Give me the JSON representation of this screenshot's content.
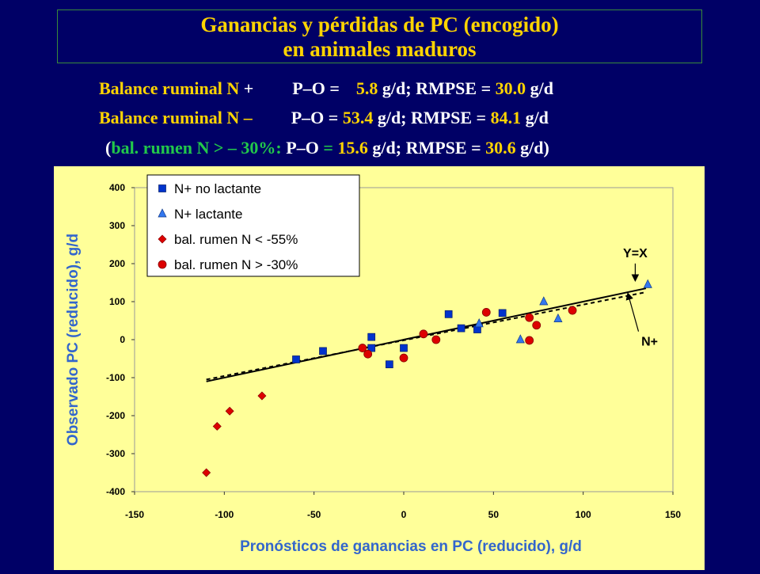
{
  "title": {
    "line1": "Ganancias y pérdidas de PC (encogido)",
    "line2": "en animales maduros"
  },
  "stats": {
    "row1": {
      "label": "Balance ruminal N",
      "sign": "+",
      "po_prefix": "P–O =",
      "po_value": "5.8",
      "po_unit": "g/d;",
      "rmpse_prefix": "RMPSE =",
      "rmpse_value": "30.0",
      "rmpse_unit": "g/d"
    },
    "row2": {
      "label": "Balance ruminal N",
      "sign": "–",
      "po_prefix": "P–O =",
      "po_value": "53.4",
      "po_unit": "g/d;",
      "rmpse_prefix": "RMPSE =",
      "rmpse_value": "84.1",
      "rmpse_unit": "g/d"
    },
    "row3": {
      "open": "(",
      "label": "bal. rumen N > – 30%:",
      "po_prefix": "P–O",
      "eq": "=",
      "po_value": "15.6",
      "po_unit": "g/d;",
      "rmpse_prefix": "RMPSE =",
      "rmpse_value": "30.6",
      "rmpse_unit": "g/d)"
    }
  },
  "colors": {
    "background": "#000066",
    "title": "#ffd400",
    "panel": "#ffff99",
    "axis_label": "#3366cc",
    "accent_green": "#22c84a",
    "square": "#0033cc",
    "triangle": "#3377ee",
    "diamond": "#dd0000",
    "circle": "#dd0000"
  },
  "chart_data": {
    "type": "scatter",
    "xlabel": "Pronósticos de ganancias en PC (reducido), g/d",
    "ylabel": "Observado PC (reducido), g/d",
    "xlim": [
      -150,
      150
    ],
    "ylim": [
      -400,
      400
    ],
    "xticks": [
      "-150",
      "-100",
      "-50",
      "0",
      "50",
      "100",
      "150"
    ],
    "yticks": [
      "400",
      "300",
      "200",
      "100",
      "0",
      "-100",
      "-200",
      "-300",
      "-400"
    ],
    "legend_position": "top-left",
    "series": [
      {
        "name": "N+ no lactante",
        "marker": "square",
        "points": [
          [
            -60,
            -52
          ],
          [
            -45,
            -30
          ],
          [
            -18,
            7
          ],
          [
            -18,
            -22
          ],
          [
            -8,
            -65
          ],
          [
            0,
            -22
          ],
          [
            25,
            67
          ],
          [
            32,
            30
          ],
          [
            41,
            27
          ],
          [
            55,
            70
          ]
        ]
      },
      {
        "name": "N+ lactante",
        "marker": "triangle",
        "points": [
          [
            42,
            42
          ],
          [
            65,
            0
          ],
          [
            78,
            100
          ],
          [
            86,
            55
          ],
          [
            136,
            145
          ]
        ]
      },
      {
        "name": "bal. rumen N < -55%",
        "marker": "diamond",
        "points": [
          [
            -110,
            -350
          ],
          [
            -104,
            -228
          ],
          [
            -97,
            -188
          ],
          [
            -79,
            -148
          ]
        ]
      },
      {
        "name": "bal. rumen N > -30%",
        "marker": "circle",
        "points": [
          [
            -23,
            -22
          ],
          [
            -20,
            -38
          ],
          [
            0,
            -48
          ],
          [
            11,
            15
          ],
          [
            18,
            0
          ],
          [
            46,
            72
          ],
          [
            70,
            58
          ],
          [
            70,
            -2
          ],
          [
            74,
            38
          ],
          [
            94,
            77
          ]
        ]
      }
    ],
    "lines": [
      {
        "name": "Y=X",
        "style": "solid",
        "from": [
          -110,
          -110
        ],
        "to": [
          135,
          135
        ]
      },
      {
        "name": "N+",
        "style": "dashed",
        "from": [
          -110,
          -105
        ],
        "to": [
          135,
          125
        ]
      }
    ],
    "annotations": [
      {
        "text": "Y=X",
        "at": [
          129,
          217
        ],
        "arrow_to": [
          129,
          157
        ]
      },
      {
        "text": "N+",
        "at": [
          137,
          -16
        ],
        "arrow_to": [
          125,
          120
        ]
      }
    ]
  }
}
